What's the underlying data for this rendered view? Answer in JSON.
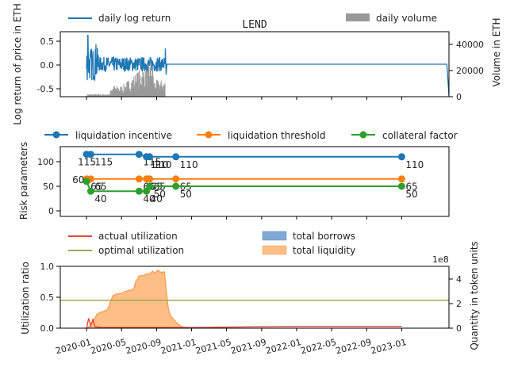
{
  "chart_data": [
    {
      "type": "line",
      "title": "LEND",
      "ylabel": "Log return of price in ETH",
      "ylabel_right": "Volume in ETH",
      "ylim": [
        -0.62,
        0.62
      ],
      "yticks": [
        0.5,
        0.0,
        -0.5
      ],
      "ytick_labels": [
        "0.5",
        "0.0",
        "-0.5"
      ],
      "ylim_right": [
        0,
        50000
      ],
      "yticks_right": [
        0,
        20000,
        40000
      ],
      "ytick_labels_right": [
        "0",
        "20000",
        "40000"
      ],
      "legend": [
        "daily log return",
        "daily volume"
      ],
      "colors": {
        "return": "#1f77b4",
        "volume": "#999999"
      },
      "active_period": {
        "start": 2020.0,
        "end": 2020.75
      }
    },
    {
      "type": "line",
      "ylabel": "Risk parameters",
      "ylim": [
        -5,
        130
      ],
      "yticks": [
        0,
        50,
        100
      ],
      "ytick_labels": [
        "0",
        "50",
        "100"
      ],
      "legend": [
        "liquidation incentive",
        "liquidation threshold",
        "collateral factor"
      ],
      "colors": [
        "#1f77b4",
        "#ff7f0e",
        "#2ca02c"
      ],
      "series": [
        {
          "name": "liquidation incentive",
          "points": [
            {
              "x": 2020.0,
              "y": 115,
              "label": "115"
            },
            {
              "x": 2020.04,
              "y": 115,
              "label": "115"
            },
            {
              "x": 2020.5,
              "y": 115,
              "label": "115"
            },
            {
              "x": 2020.57,
              "y": 110,
              "label": "110"
            },
            {
              "x": 2020.6,
              "y": 110,
              "label": "110"
            },
            {
              "x": 2020.85,
              "y": 110,
              "label": "110"
            },
            {
              "x": 2023.0,
              "y": 110,
              "label": "110"
            }
          ]
        },
        {
          "name": "liquidation threshold",
          "points": [
            {
              "x": 2020.0,
              "y": 65,
              "label": "65"
            },
            {
              "x": 2020.04,
              "y": 65,
              "label": "65"
            },
            {
              "x": 2020.5,
              "y": 65,
              "label": "65"
            },
            {
              "x": 2020.57,
              "y": 65,
              "label": "65"
            },
            {
              "x": 2020.6,
              "y": 65,
              "label": "65"
            },
            {
              "x": 2020.85,
              "y": 65,
              "label": "65"
            },
            {
              "x": 2023.0,
              "y": 65,
              "label": "65"
            }
          ]
        },
        {
          "name": "collateral factor",
          "points": [
            {
              "x": 2020.0,
              "y": 60,
              "label": "60"
            },
            {
              "x": 2020.04,
              "y": 40,
              "label": "40"
            },
            {
              "x": 2020.5,
              "y": 40,
              "label": "40"
            },
            {
              "x": 2020.57,
              "y": 40,
              "label": "40"
            },
            {
              "x": 2020.6,
              "y": 50,
              "label": "50"
            },
            {
              "x": 2020.85,
              "y": 50,
              "label": "50"
            },
            {
              "x": 2023.0,
              "y": 50,
              "label": "50"
            }
          ]
        }
      ]
    },
    {
      "type": "area",
      "ylabel": "Utilization ratio",
      "ylabel_right": "Quantity in token units",
      "ylim": [
        0,
        1.0
      ],
      "yticks": [
        0.0,
        0.5,
        1.0
      ],
      "ytick_labels": [
        "0.0",
        "0.5",
        "1.0"
      ],
      "ylim_right": [
        0,
        5.0
      ],
      "yticks_right": [
        0,
        2,
        4
      ],
      "ytick_labels_right": [
        "0",
        "2",
        "4"
      ],
      "right_scale_label": "1e8",
      "legend": [
        "actual utilization",
        "optimal utilization",
        "total borrows",
        "total liquidity"
      ],
      "colors": {
        "actual": "#e8483a",
        "optimal": "#a5a84a",
        "borrows": "#7fa9d2",
        "liquidity": "#ffbe86"
      },
      "optimal_utilization": 0.45,
      "total_liquidity_1e8": {
        "x": [
          2020.0,
          2020.02,
          2020.05,
          2020.08,
          2020.1,
          2020.15,
          2020.2,
          2020.25,
          2020.3,
          2020.35,
          2020.4,
          2020.45,
          2020.47,
          2020.5,
          2020.55,
          2020.6,
          2020.63,
          2020.66,
          2020.68,
          2020.7,
          2020.72,
          2020.74,
          2020.76,
          2020.78,
          2020.8,
          2020.85,
          2020.9,
          2020.95,
          2021.0
        ],
        "y": [
          0.0,
          0.1,
          0.35,
          0.8,
          1.1,
          1.3,
          1.5,
          2.6,
          2.8,
          2.9,
          3.0,
          3.2,
          3.8,
          4.2,
          4.3,
          4.4,
          4.6,
          4.5,
          4.7,
          4.6,
          4.5,
          4.6,
          3.0,
          1.5,
          1.0,
          0.5,
          0.15,
          0.05,
          0.0
        ]
      },
      "actual_utilization": {
        "x": [
          2020.0,
          2020.02,
          2020.04,
          2020.06,
          2020.08,
          2020.1,
          2020.15,
          2020.3,
          2020.6,
          2021.0,
          2021.5,
          2022.0,
          2022.5,
          2023.0
        ],
        "y": [
          0.0,
          0.16,
          0.04,
          0.14,
          0.03,
          0.02,
          0.01,
          0.01,
          0.01,
          0.01,
          0.02,
          0.03,
          0.03,
          0.03
        ]
      },
      "xlim": [
        2019.75,
        2023.45
      ],
      "xticks": [
        2020.0,
        2020.333,
        2020.667,
        2021.0,
        2021.333,
        2021.667,
        2022.0,
        2022.333,
        2022.667,
        2023.0
      ],
      "xtick_labels": [
        "2020-01",
        "2020-05",
        "2020-09",
        "2021-01",
        "2021-05",
        "2021-09",
        "2022-01",
        "2022-05",
        "2022-09",
        "2023-01"
      ]
    }
  ]
}
